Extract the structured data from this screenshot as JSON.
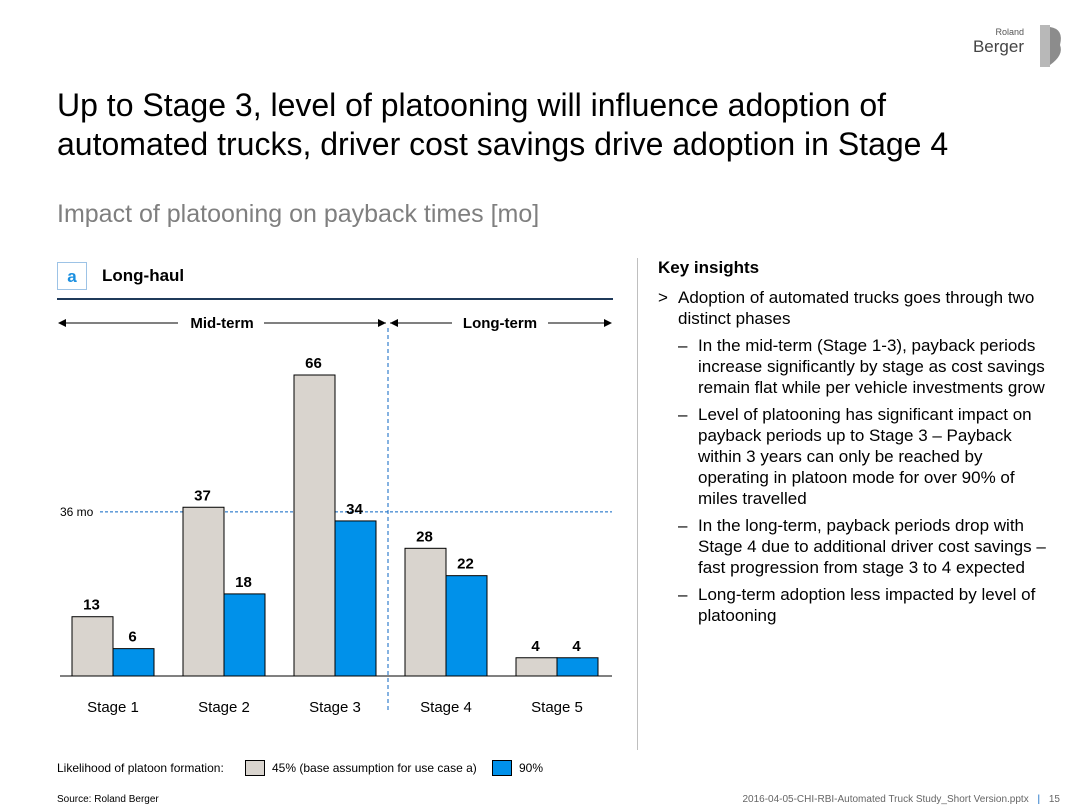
{
  "logo": {
    "small": "Roland",
    "big": "Berger"
  },
  "title": "Up to Stage 3, level of platooning will influence adoption of automated trucks, driver cost savings drive adoption in Stage 4",
  "subtitle": "Impact of platooning on payback times [mo]",
  "section": {
    "letter": "a",
    "title": "Long-haul"
  },
  "chart_data": {
    "type": "bar",
    "categories": [
      "Stage 1",
      "Stage 2",
      "Stage 3",
      "Stage 4",
      "Stage 5"
    ],
    "series": [
      {
        "name": "45% (base assumption for use case a)",
        "values": [
          13,
          37,
          66,
          28,
          4
        ],
        "color": "#d9d4ce"
      },
      {
        "name": "90%",
        "values": [
          6,
          18,
          34,
          22,
          4
        ],
        "color": "#0091ea"
      }
    ],
    "ylim": [
      0,
      66
    ],
    "reference_line": {
      "value": 36,
      "label": "36 mo"
    },
    "periods": [
      {
        "label": "Mid-term",
        "stages": [
          "Stage 1",
          "Stage 2",
          "Stage 3"
        ]
      },
      {
        "label": "Long-term",
        "stages": [
          "Stage 4",
          "Stage 5"
        ]
      }
    ],
    "legend_label": "Likelihood of platoon formation:",
    "xlabel": "",
    "ylabel": ""
  },
  "insights": {
    "heading": "Key insights",
    "main_marker": ">",
    "sub_marker": "–",
    "main": "Adoption of automated trucks goes through two distinct phases",
    "subs": [
      "In the mid-term (Stage 1-3), payback periods increase significantly by stage as cost savings remain flat while per vehicle investments grow",
      "Level of platooning has significant impact on payback periods up to Stage 3 – Payback within 3 years can only be reached by operating in platoon mode for over 90% of miles travelled",
      "In the long-term, payback periods drop with Stage 4 due to additional driver cost savings – fast progression from stage 3 to 4 expected",
      "Long-term adoption less impacted by level of platooning"
    ]
  },
  "source": "Source: Roland Berger",
  "footer": {
    "file": "2016-04-05-CHI-RBI-Automated Truck Study_Short Version.pptx",
    "page": "15"
  }
}
